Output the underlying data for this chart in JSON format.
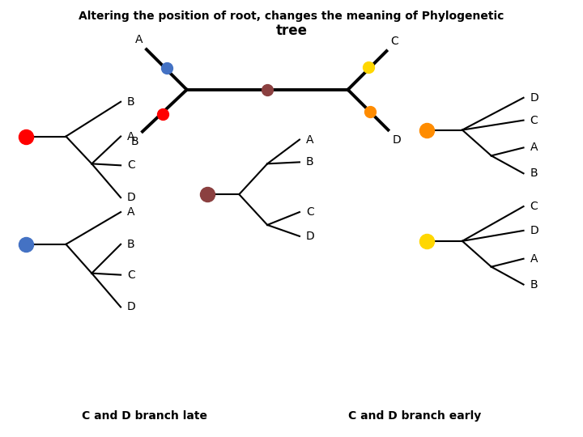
{
  "title_line1": "Altering the position of root, changes the meaning of Phylogenetic",
  "title_line2": "tree",
  "bg_color": "#ffffff",
  "label_left": "C and D branch late",
  "label_right": "C and D branch early"
}
